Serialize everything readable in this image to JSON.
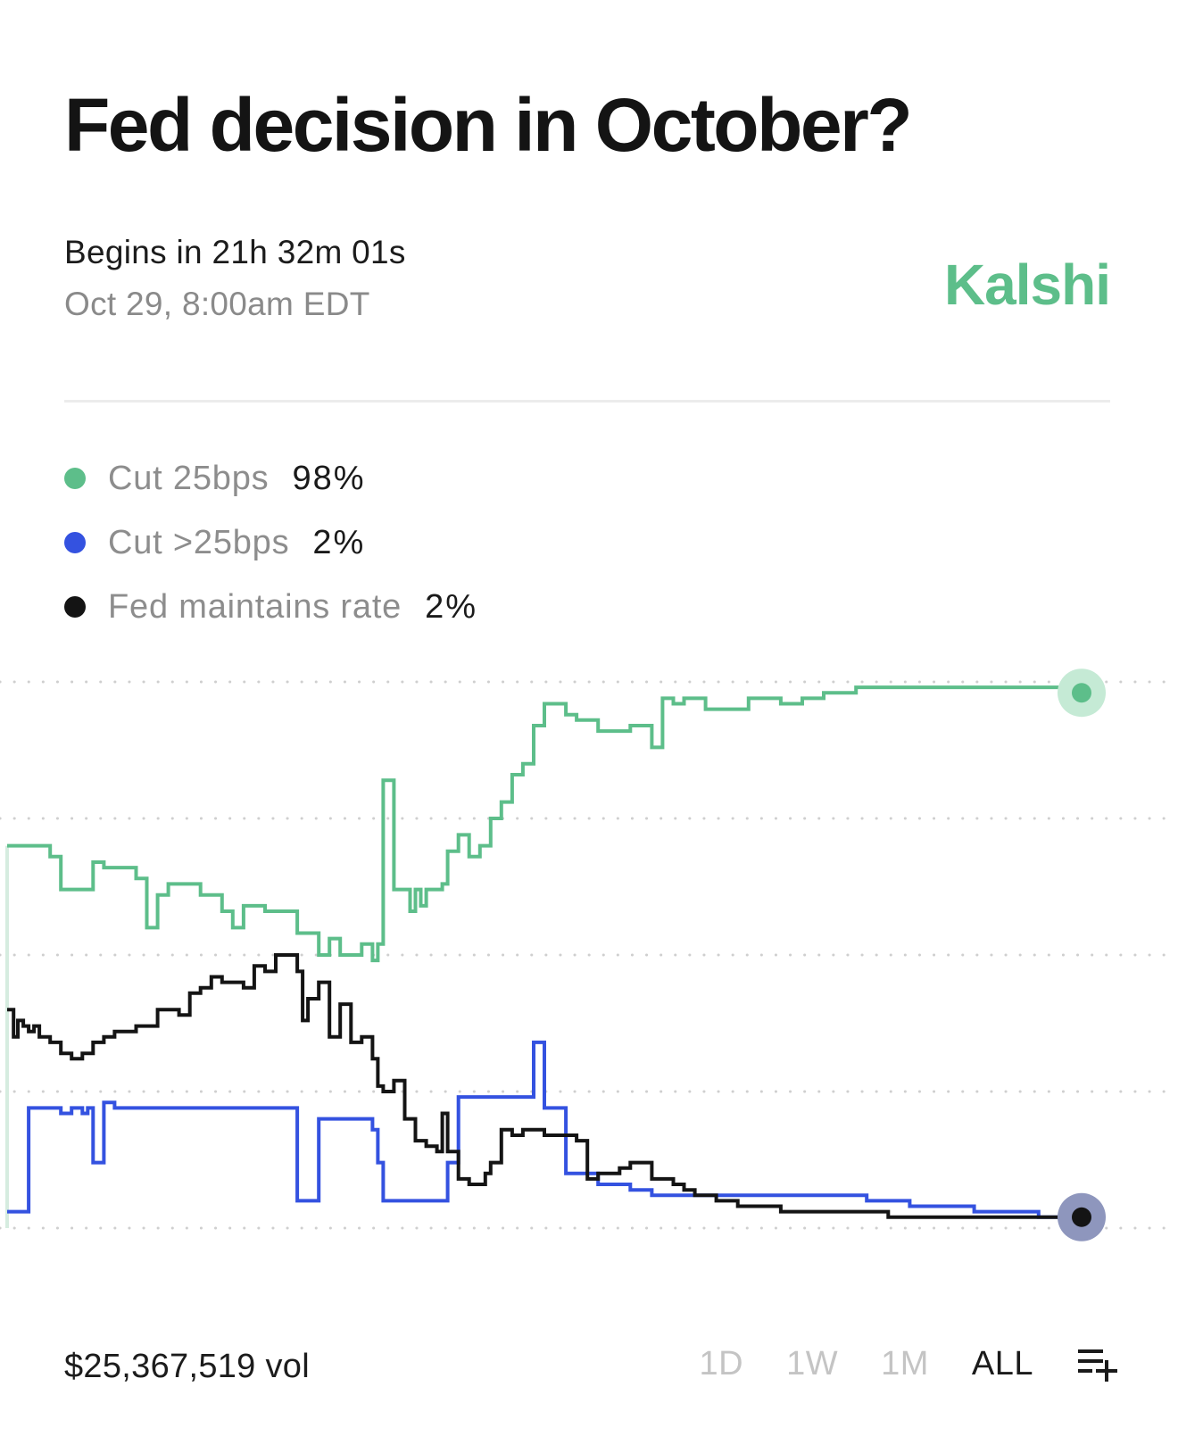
{
  "header": {
    "title": "Fed decision in October?",
    "begins": "Begins in 21h 32m 01s",
    "date": "Oct 29, 8:00am EDT",
    "brand": "Kalshi",
    "brand_color": "#5dbe8a"
  },
  "legend": [
    {
      "label": "Cut 25bps",
      "value": "98%",
      "color": "#5dbe8a"
    },
    {
      "label": "Cut >25bps",
      "value": "2%",
      "color": "#3452e0"
    },
    {
      "label": "Fed maintains rate",
      "value": "2%",
      "color": "#141414"
    }
  ],
  "chart_data": {
    "type": "line",
    "grid": "dotted horizontal",
    "ylim": [
      0,
      100
    ],
    "series": [
      {
        "name": "Cut 25bps",
        "color": "#5dbe8a",
        "x": [
          0,
          0.3,
          4,
          5,
          8,
          9,
          10,
          12,
          13,
          14,
          15,
          17,
          18,
          19,
          20,
          21,
          22,
          24,
          27,
          28,
          29,
          30,
          31,
          33,
          34,
          34.5,
          35,
          36,
          37,
          37.5,
          38,
          38.5,
          39,
          40,
          40.5,
          41,
          42,
          43,
          44,
          45,
          46,
          47,
          48,
          49,
          50,
          51,
          52,
          53,
          54,
          55,
          57,
          58,
          59,
          60,
          61,
          62,
          63,
          65,
          66,
          67,
          68,
          69,
          70,
          72,
          74,
          76,
          78,
          79,
          80,
          82,
          84,
          86,
          88,
          90,
          92,
          94,
          96,
          98,
          100
        ],
        "values": [
          70,
          70,
          68,
          62,
          67,
          66,
          66,
          64,
          55,
          61,
          63,
          63,
          61,
          61,
          58,
          55,
          59,
          58,
          54,
          54,
          50,
          53,
          50,
          52,
          49,
          52,
          82,
          62,
          62,
          58,
          62,
          59,
          62,
          62,
          63,
          69,
          72,
          68,
          70,
          75,
          78,
          83,
          85,
          92,
          96,
          96,
          94,
          93,
          93,
          91,
          91,
          92,
          92,
          88,
          97,
          96,
          97,
          95,
          95,
          95,
          95,
          97,
          97,
          96,
          97,
          98,
          98,
          99,
          99,
          99,
          99,
          99,
          99,
          99,
          99,
          99,
          99,
          98,
          98
        ]
      },
      {
        "name": "Cut >25bps",
        "color": "#3452e0",
        "x": [
          0,
          0.2,
          2,
          4,
          5,
          6,
          7,
          7.5,
          8,
          8.5,
          9,
          10,
          12,
          14,
          20,
          24,
          26,
          27,
          28,
          29,
          30,
          32,
          34,
          34.5,
          35,
          36,
          38,
          39,
          40,
          41,
          42,
          44,
          45,
          46,
          47,
          48,
          49,
          50,
          52,
          55,
          56,
          58,
          60,
          62,
          64,
          66,
          70,
          74,
          78,
          80,
          82,
          84,
          86,
          88,
          90,
          92,
          94,
          96,
          98,
          100
        ],
        "values": [
          3,
          3,
          22,
          22,
          21,
          22,
          21,
          22,
          12,
          12,
          23,
          22,
          22,
          22,
          22,
          22,
          22,
          5,
          5,
          20,
          20,
          20,
          18,
          12,
          5,
          5,
          5,
          5,
          5,
          12,
          24,
          24,
          24,
          24,
          24,
          24,
          34,
          22,
          10,
          8,
          8,
          7,
          6,
          6,
          6,
          6,
          6,
          6,
          6,
          5,
          5,
          4,
          4,
          4,
          3,
          3,
          3,
          2,
          2,
          2
        ]
      },
      {
        "name": "Fed maintains rate",
        "color": "#141414",
        "x": [
          0,
          0.3,
          0.6,
          1,
          1.5,
          2,
          2.5,
          3,
          4,
          5,
          6,
          7,
          8,
          9,
          10,
          12,
          14,
          16,
          17,
          18,
          19,
          20,
          21,
          22,
          23,
          24,
          25,
          26,
          27,
          27.5,
          28,
          29,
          30,
          31,
          32,
          33,
          34,
          34.5,
          35,
          36,
          37,
          38,
          39,
          40,
          40.5,
          41,
          42,
          43,
          44,
          44.5,
          45,
          46,
          47,
          48,
          49,
          50,
          51,
          52,
          53,
          54,
          55,
          56,
          57,
          58,
          59,
          60,
          61,
          62,
          63,
          64,
          65,
          66,
          68,
          70,
          72,
          74,
          76,
          78,
          79,
          80,
          82,
          84,
          86,
          88,
          90,
          92,
          94,
          96,
          98,
          100
        ],
        "values": [
          40,
          40,
          35,
          38,
          37,
          36,
          37,
          35,
          34,
          32,
          31,
          32,
          34,
          35,
          36,
          37,
          40,
          39,
          43,
          44,
          46,
          45,
          45,
          44,
          48,
          47,
          50,
          50,
          47,
          38,
          42,
          45,
          35,
          41,
          34,
          35,
          31,
          26,
          25,
          27,
          20,
          16,
          15,
          14,
          21,
          14,
          9,
          8,
          8,
          10,
          12,
          18,
          17,
          18,
          18,
          17,
          17,
          17,
          16,
          9,
          10,
          10,
          11,
          12,
          12,
          9,
          9,
          8,
          7,
          6,
          6,
          5,
          4,
          4,
          3,
          3,
          3,
          3,
          3,
          3,
          2,
          2,
          2,
          2,
          2,
          2,
          2,
          2,
          2,
          2
        ]
      }
    ]
  },
  "footer": {
    "volume": "$25,367,519 vol",
    "tabs": [
      "1D",
      "1W",
      "1M",
      "ALL"
    ],
    "active_tab": "ALL",
    "icon": "list-add-icon"
  }
}
